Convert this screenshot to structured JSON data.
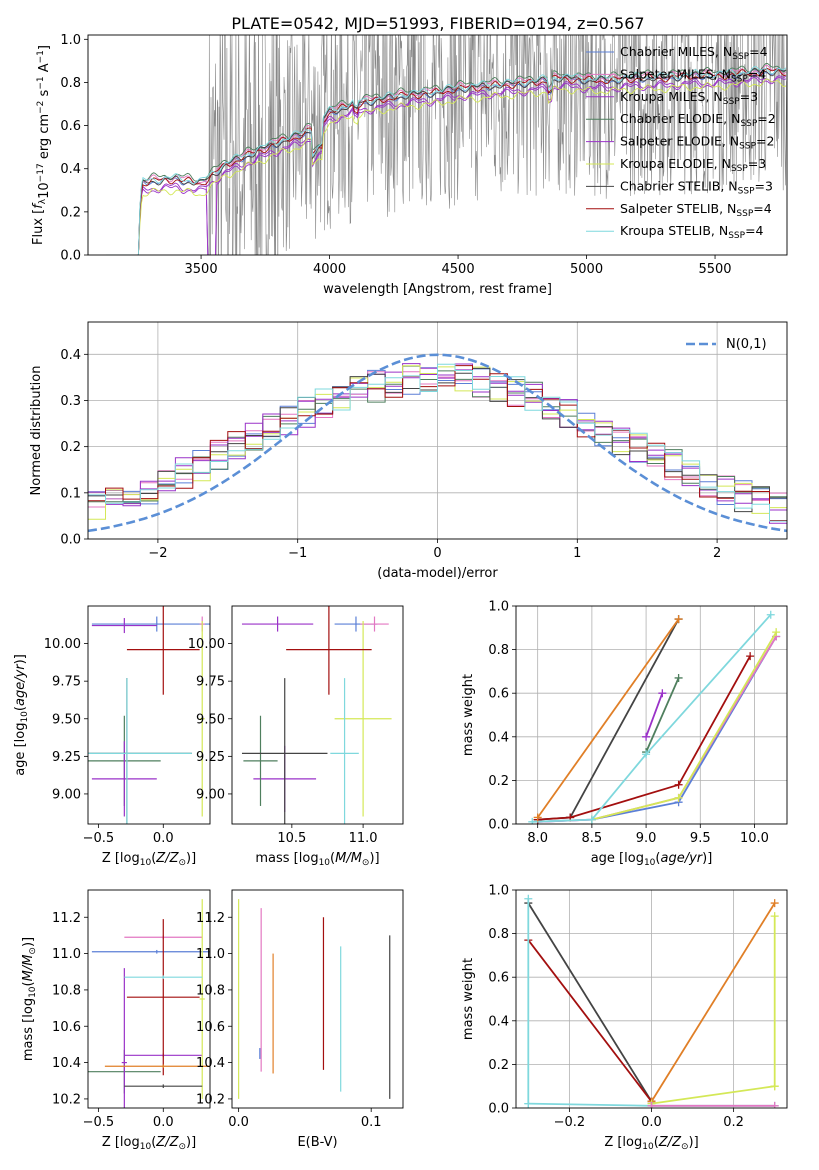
{
  "figure_title": "PLATE=0542, MJD=51993, FIBERID=0194, z=0.567",
  "colors": {
    "ssp": [
      "#5b7fd6",
      "#e377c2",
      "#9a32c8",
      "#4f7f5e",
      "#9a32c8",
      "#d4e857",
      "#444444",
      "#a30f0f",
      "#7fd8dd"
    ],
    "spectrum_data": "#888888",
    "gaussian": "#5b8fd6",
    "grid": "#b0b0b0"
  },
  "legend_ssp": [
    {
      "label": "Chabrier MILES, N",
      "sub": "SSP",
      "tail": "=4"
    },
    {
      "label": "Salpeter MILES, N",
      "sub": "SSP",
      "tail": "=4"
    },
    {
      "label": "Kroupa MILES, N",
      "sub": "SSP",
      "tail": "=3"
    },
    {
      "label": "Chabrier ELODIE, N",
      "sub": "SSP",
      "tail": "=2"
    },
    {
      "label": "Salpeter ELODIE, N",
      "sub": "SSP",
      "tail": "=2"
    },
    {
      "label": "Kroupa ELODIE, N",
      "sub": "SSP",
      "tail": "=3"
    },
    {
      "label": "Chabrier STELIB, N",
      "sub": "SSP",
      "tail": "=3"
    },
    {
      "label": "Salpeter STELIB, N",
      "sub": "SSP",
      "tail": "=4"
    },
    {
      "label": "Kroupa STELIB, N",
      "sub": "SSP",
      "tail": "=4"
    }
  ],
  "chart_data": [
    {
      "id": "spectrum",
      "type": "line",
      "xlabel": "wavelength [Angstrom, rest frame]",
      "ylabel": "Flux [f_λ 10^-17 erg cm^-2 s^-1 A^-1]",
      "xlim": [
        3060,
        5780
      ],
      "ylim": [
        0,
        1.02
      ],
      "xticks": [
        "3500",
        "4000",
        "4500",
        "5000",
        "5500"
      ],
      "yticks": [
        "0.0",
        "0.2",
        "0.4",
        "0.6",
        "0.8",
        "1.0"
      ],
      "model_continuum": {
        "x": [
          3250,
          3270,
          3300,
          3400,
          3500,
          3600,
          3700,
          3800,
          3900,
          3950,
          4000,
          4100,
          4200,
          4300,
          4400,
          4500,
          4600,
          4700,
          4800,
          4900,
          5000,
          5100,
          5200,
          5300,
          5400,
          5500,
          5600,
          5700,
          5780
        ],
        "y": [
          0.0,
          0.33,
          0.34,
          0.35,
          0.33,
          0.42,
          0.47,
          0.52,
          0.56,
          0.6,
          0.66,
          0.7,
          0.72,
          0.74,
          0.75,
          0.77,
          0.78,
          0.79,
          0.8,
          0.82,
          0.81,
          0.81,
          0.82,
          0.82,
          0.83,
          0.83,
          0.84,
          0.85,
          0.85
        ]
      }
    },
    {
      "id": "residuals",
      "type": "histogram",
      "xlabel": "(data-model)/error",
      "ylabel": "Normed distribution",
      "xlim": [
        -2.5,
        2.5
      ],
      "ylim": [
        0,
        0.47
      ],
      "xticks": [
        "−2",
        "−1",
        "0",
        "1",
        "2"
      ],
      "yticks": [
        "0.0",
        "0.1",
        "0.2",
        "0.3",
        "0.4"
      ],
      "bins": 40,
      "gaussian_label": "N(0,1)"
    },
    {
      "id": "age_vs_Z",
      "type": "errorbar",
      "xlabel": "Z [log10(Z/Z⊙)]",
      "ylabel": "age  [log10(age/yr)]",
      "xlim": [
        -0.58,
        0.36
      ],
      "ylim": [
        8.8,
        10.25
      ],
      "xticks": [
        "−0.5",
        "0.0"
      ],
      "yticks": [
        "9.00",
        "9.25",
        "9.50",
        "9.75",
        "10.00"
      ],
      "points": [
        {
          "series": 0,
          "x": -0.05,
          "y": 10.13,
          "xerr": 0.5,
          "yerr": 0.05
        },
        {
          "series": 1,
          "x": 0.3,
          "y": 10.13,
          "xerr": 0.02,
          "yerr": 0.05
        },
        {
          "series": 2,
          "x": -0.3,
          "y": 10.12,
          "xerr": 0.25,
          "yerr": 0.05
        },
        {
          "series": 3,
          "x": -0.3,
          "y": 9.22,
          "xerr": 0.28,
          "yerr": 0.3
        },
        {
          "series": 4,
          "x": -0.3,
          "y": 9.1,
          "xerr": 0.25,
          "yerr": 0.25
        },
        {
          "series": 5,
          "x": 0.3,
          "y": 9.5,
          "xerr": 0.02,
          "yerr": 0.65
        },
        {
          "series": 6,
          "x": -0.28,
          "y": 9.27,
          "xerr": 0.5,
          "yerr": 0.5
        },
        {
          "series": 7,
          "x": 0.0,
          "y": 9.96,
          "xerr": 0.28,
          "yerr": 0.3
        },
        {
          "series": 8,
          "x": -0.28,
          "y": 9.27,
          "xerr": 0.5,
          "yerr": 0.5
        }
      ]
    },
    {
      "id": "age_vs_mass",
      "type": "errorbar",
      "xlabel": "mass [log10(M/M⊙)]",
      "ylabel": "",
      "xlim": [
        10.08,
        11.28
      ],
      "ylim": [
        8.8,
        10.25
      ],
      "xticks": [
        "10.5",
        "11.0"
      ],
      "yticks": [
        "9.00",
        "9.25",
        "9.50",
        "9.75",
        "10.00"
      ],
      "points": [
        {
          "series": 0,
          "x": 10.95,
          "y": 10.13,
          "xerr": 0.15,
          "yerr": 0.05
        },
        {
          "series": 1,
          "x": 11.08,
          "y": 10.13,
          "xerr": 0.1,
          "yerr": 0.05
        },
        {
          "series": 2,
          "x": 10.45,
          "y": 9.1,
          "xerr": 0.22,
          "yerr": 0.22
        },
        {
          "series": 3,
          "x": 10.28,
          "y": 9.22,
          "xerr": 0.12,
          "yerr": 0.3
        },
        {
          "series": 4,
          "x": 10.4,
          "y": 10.13,
          "xerr": 0.25,
          "yerr": 0.05
        },
        {
          "series": 5,
          "x": 11.0,
          "y": 9.5,
          "xerr": 0.2,
          "yerr": 0.65
        },
        {
          "series": 6,
          "x": 10.45,
          "y": 9.27,
          "xerr": 0.3,
          "yerr": 0.5
        },
        {
          "series": 7,
          "x": 10.76,
          "y": 9.96,
          "xerr": 0.3,
          "yerr": 0.3
        },
        {
          "series": 8,
          "x": 10.87,
          "y": 9.27,
          "xerr": 0.1,
          "yerr": 0.5
        }
      ]
    },
    {
      "id": "weight_vs_age",
      "type": "line",
      "xlabel": "age  [log10(age/yr)]",
      "ylabel": "mass weight",
      "xlim": [
        7.8,
        10.3
      ],
      "ylim": [
        0,
        1.0
      ],
      "xticks": [
        "8.0",
        "8.5",
        "9.0",
        "9.5",
        "10.0"
      ],
      "yticks": [
        "0.0",
        "0.2",
        "0.4",
        "0.6",
        "0.8",
        "1.0"
      ],
      "series": [
        {
          "series": 0,
          "x": [
            8.0,
            8.5,
            9.3,
            10.2
          ],
          "y": [
            0.01,
            0.02,
            0.1,
            0.86
          ]
        },
        {
          "series": 1,
          "x": [
            8.0,
            8.5,
            9.3,
            10.2
          ],
          "y": [
            0.01,
            0.02,
            0.12,
            0.86
          ]
        },
        {
          "series": 2,
          "x": [
            9.0,
            9.15
          ],
          "y": [
            0.4,
            0.6
          ]
        },
        {
          "series": 3,
          "x": [
            9.0,
            9.3
          ],
          "y": [
            0.33,
            0.67
          ]
        },
        {
          "series": 5,
          "x": [
            8.5,
            9.3,
            10.2
          ],
          "y": [
            0.02,
            0.12,
            0.88
          ]
        },
        {
          "series": 6,
          "x": [
            8.0,
            8.3,
            9.3
          ],
          "y": [
            0.02,
            0.03,
            0.94
          ]
        },
        {
          "series": 7,
          "x": [
            8.0,
            8.3,
            9.3,
            9.96
          ],
          "y": [
            0.02,
            0.03,
            0.18,
            0.77
          ]
        },
        {
          "series": 8,
          "x": [
            7.95,
            8.5,
            9.0,
            10.15
          ],
          "y": [
            0.01,
            0.02,
            0.32,
            0.96
          ]
        },
        {
          "series": 9,
          "x": [
            8.0,
            9.3
          ],
          "y": [
            0.03,
            0.94
          ]
        }
      ]
    },
    {
      "id": "mass_vs_Z",
      "type": "errorbar",
      "xlabel": "Z [log10(Z/Z⊙)]",
      "ylabel": "mass [log10(M/M⊙)]",
      "xlim": [
        -0.58,
        0.36
      ],
      "ylim": [
        10.15,
        11.35
      ],
      "xticks": [
        "−0.5",
        "0.0"
      ],
      "yticks": [
        "10.2",
        "10.4",
        "10.6",
        "10.8",
        "11.0",
        "11.2"
      ],
      "points": [
        {
          "series": 0,
          "x": -0.05,
          "y": 11.01,
          "xerr": 0.5,
          "yerr": 0.01
        },
        {
          "series": 1,
          "x": 0.0,
          "y": 11.09,
          "xerr": 0.3,
          "yerr": 0.01
        },
        {
          "series": 2,
          "x": 0.0,
          "y": 10.44,
          "xerr": 0.3,
          "yerr": 0.01
        },
        {
          "series": 3,
          "x": -0.3,
          "y": 10.35,
          "xerr": 0.28,
          "yerr": 0.12
        },
        {
          "series": 4,
          "x": -0.3,
          "y": 10.4,
          "xerr": 0.02,
          "yerr": 0.52
        },
        {
          "series": 5,
          "x": 0.3,
          "y": 10.75,
          "xerr": 0.02,
          "yerr": 0.55
        },
        {
          "series": 6,
          "x": 0.0,
          "y": 10.27,
          "xerr": 0.3,
          "yerr": 0.01
        },
        {
          "series": 7,
          "x": 0.0,
          "y": 10.76,
          "xerr": 0.28,
          "yerr": 0.43
        },
        {
          "series": 8,
          "x": 0.0,
          "y": 10.87,
          "xerr": 0.3,
          "yerr": 0.01
        },
        {
          "series": 9,
          "x": 0.0,
          "y": 10.38,
          "xerr": 0.45,
          "yerr": 0.01
        }
      ]
    },
    {
      "id": "mass_vs_EBV",
      "type": "errorbar",
      "xlabel": "E(B-V)",
      "ylabel": "",
      "xlim": [
        -0.005,
        0.124
      ],
      "ylim": [
        10.15,
        11.35
      ],
      "xticks": [
        "0.0",
        "0.1"
      ],
      "yticks": [
        "10.2",
        "10.4",
        "10.6",
        "10.8",
        "11.0",
        "11.2"
      ],
      "points": [
        {
          "series": 0,
          "x": 0.016,
          "y": 10.45,
          "yerr": 0.03
        },
        {
          "series": 1,
          "x": 0.017,
          "y": 10.8,
          "yerr": 0.45
        },
        {
          "series": 5,
          "x": 0.0,
          "y": 10.75,
          "yerr": 0.55
        },
        {
          "series": 9,
          "x": 0.026,
          "y": 10.67,
          "yerr": 0.33
        },
        {
          "series": 7,
          "x": 0.064,
          "y": 10.78,
          "yerr": 0.42
        },
        {
          "series": 8,
          "x": 0.077,
          "y": 10.64,
          "yerr": 0.4
        },
        {
          "series": 6,
          "x": 0.114,
          "y": 10.65,
          "yerr": 0.45
        }
      ]
    },
    {
      "id": "weight_vs_Z",
      "type": "line",
      "xlabel": "Z [log10(Z/Z⊙)]",
      "ylabel": "mass weight",
      "xlim": [
        -0.33,
        0.33
      ],
      "ylim": [
        0,
        1.0
      ],
      "xticks": [
        "−0.2",
        "0.0",
        "0.2"
      ],
      "yticks": [
        "0.0",
        "0.2",
        "0.4",
        "0.6",
        "0.8",
        "1.0"
      ],
      "series": [
        {
          "series": 6,
          "x": [
            -0.3,
            0.0
          ],
          "y": [
            0.94,
            0.03
          ]
        },
        {
          "series": 7,
          "x": [
            -0.3,
            0.0
          ],
          "y": [
            0.77,
            0.03
          ]
        },
        {
          "series": 9,
          "x": [
            0.0,
            0.3
          ],
          "y": [
            0.03,
            0.94
          ]
        },
        {
          "series": 5,
          "x": [
            0.0,
            0.3
          ],
          "y": [
            0.02,
            0.1
          ]
        },
        {
          "series": 8,
          "x": [
            -0.3,
            0.0,
            0.3
          ],
          "y": [
            0.02,
            0.01,
            0.01
          ]
        },
        {
          "series": 8,
          "x": [
            -0.3,
            -0.3
          ],
          "y": [
            0.02,
            0.96
          ]
        },
        {
          "series": 5,
          "x": [
            0.3,
            0.3
          ],
          "y": [
            0.1,
            0.88
          ]
        },
        {
          "series": 1,
          "x": [
            0.0,
            0.3
          ],
          "y": [
            0.01,
            0.01
          ]
        }
      ]
    }
  ]
}
